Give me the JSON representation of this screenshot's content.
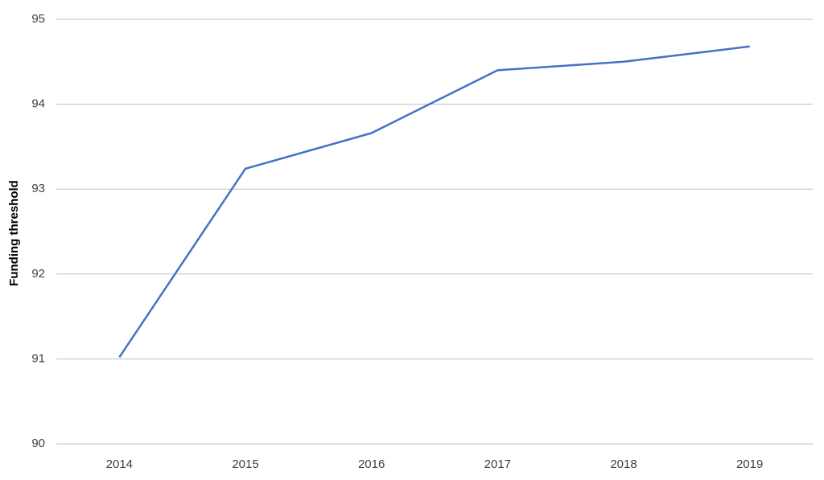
{
  "chart_data": {
    "type": "line",
    "y_label": "Funding threshold",
    "categories": [
      "2014",
      "2015",
      "2016",
      "2017",
      "2018",
      "2019"
    ],
    "series": [
      {
        "name": "Funding threshold",
        "color": "#4472c4",
        "values": [
          91.02,
          93.24,
          93.66,
          94.4,
          94.5,
          94.68
        ]
      }
    ],
    "ylim": [
      90,
      95
    ],
    "yticks": [
      90,
      91,
      92,
      93,
      94,
      95
    ],
    "grid": true
  }
}
